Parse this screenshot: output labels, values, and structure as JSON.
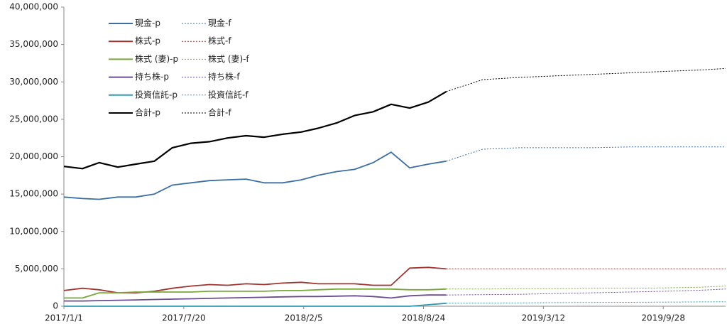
{
  "chart_data": {
    "type": "line",
    "xlim": [
      "2017/1/1",
      "2020/1/10"
    ],
    "xticks": [
      "2017/1/1",
      "2017/7/20",
      "2018/2/5",
      "2018/8/24",
      "2019/3/12",
      "2019/9/28"
    ],
    "ylim": [
      0,
      40000000
    ],
    "yticks": [
      0,
      {
        "value": 5000000,
        "label": "5,000,000"
      },
      {
        "value": 10000000,
        "label": "10,000,000"
      },
      {
        "value": 15000000,
        "label": "15,000,000"
      },
      {
        "value": 20000000,
        "label": "20,000,000"
      },
      {
        "value": 25000000,
        "label": "25,000,000"
      },
      {
        "value": 30000000,
        "label": "30,000,000"
      },
      {
        "value": 35000000,
        "label": "35,000,000"
      },
      {
        "value": 40000000,
        "label": "40,000,000"
      }
    ],
    "grid": false,
    "legend": "upper-left",
    "series": [
      {
        "name": "現金-p",
        "color": "#3a6ea5",
        "dashed": false,
        "x": [
          "2017/1/1",
          "2017/2/1",
          "2017/3/1",
          "2017/4/1",
          "2017/5/1",
          "2017/6/1",
          "2017/7/1",
          "2017/8/1",
          "2017/9/1",
          "2017/10/1",
          "2017/11/1",
          "2017/12/1",
          "2018/1/1",
          "2018/2/1",
          "2018/3/1",
          "2018/4/1",
          "2018/5/1",
          "2018/6/1",
          "2018/7/1",
          "2018/8/1",
          "2018/9/1",
          "2018/10/1"
        ],
        "values": [
          14600000,
          14400000,
          14300000,
          14600000,
          14600000,
          15000000,
          16200000,
          16500000,
          16800000,
          16900000,
          17000000,
          16500000,
          16500000,
          16900000,
          17500000,
          18000000,
          18300000,
          19200000,
          20600000,
          18500000,
          19000000,
          19400000
        ]
      },
      {
        "name": "現金-f",
        "color": "#3a6ea5",
        "dashed": true,
        "x": [
          "2018/10/1",
          "2018/12/1",
          "2019/2/1",
          "2019/4/1",
          "2019/6/1",
          "2019/8/1",
          "2019/10/1",
          "2019/12/1",
          "2020/1/10"
        ],
        "values": [
          19400000,
          21000000,
          21200000,
          21200000,
          21200000,
          21300000,
          21300000,
          21300000,
          21300000
        ]
      },
      {
        "name": "株式-p",
        "color": "#a03530",
        "dashed": false,
        "x": [
          "2017/1/1",
          "2017/2/1",
          "2017/3/1",
          "2017/4/1",
          "2017/5/1",
          "2017/6/1",
          "2017/7/1",
          "2017/8/1",
          "2017/9/1",
          "2017/10/1",
          "2017/11/1",
          "2017/12/1",
          "2018/1/1",
          "2018/2/1",
          "2018/3/1",
          "2018/4/1",
          "2018/5/1",
          "2018/6/1",
          "2018/7/1",
          "2018/8/1",
          "2018/9/1",
          "2018/10/1"
        ],
        "values": [
          2100000,
          2400000,
          2200000,
          1800000,
          1800000,
          2000000,
          2400000,
          2700000,
          2900000,
          2800000,
          3000000,
          2900000,
          3100000,
          3200000,
          3000000,
          3000000,
          3000000,
          2800000,
          2800000,
          5100000,
          5200000,
          5000000
        ]
      },
      {
        "name": "株式-f",
        "color": "#a03530",
        "dashed": true,
        "x": [
          "2018/10/1",
          "2018/12/1",
          "2019/2/1",
          "2019/4/1",
          "2019/6/1",
          "2019/8/1",
          "2019/10/1",
          "2019/12/1",
          "2020/1/10"
        ],
        "values": [
          5000000,
          5000000,
          5000000,
          5000000,
          5000000,
          5000000,
          5000000,
          5000000,
          5000000
        ]
      },
      {
        "name": "株式 (妻)-p",
        "color": "#79a83a",
        "dashed": false,
        "x": [
          "2017/1/1",
          "2017/2/1",
          "2017/3/1",
          "2017/4/1",
          "2017/5/1",
          "2017/6/1",
          "2017/7/1",
          "2017/8/1",
          "2017/9/1",
          "2017/10/1",
          "2017/11/1",
          "2017/12/1",
          "2018/1/1",
          "2018/2/1",
          "2018/3/1",
          "2018/4/1",
          "2018/5/1",
          "2018/6/1",
          "2018/7/1",
          "2018/8/1",
          "2018/9/1",
          "2018/10/1"
        ],
        "values": [
          1100000,
          1100000,
          1800000,
          1800000,
          1900000,
          1900000,
          1900000,
          1900000,
          2000000,
          2000000,
          2000000,
          2000000,
          2100000,
          2100000,
          2200000,
          2300000,
          2300000,
          2300000,
          2300000,
          2200000,
          2200000,
          2300000
        ]
      },
      {
        "name": "株式 (妻)-f",
        "color": "#79a83a",
        "dashed": true,
        "x": [
          "2018/10/1",
          "2018/12/1",
          "2019/2/1",
          "2019/4/1",
          "2019/6/1",
          "2019/8/1",
          "2019/10/1",
          "2019/12/1",
          "2020/1/10"
        ],
        "values": [
          2300000,
          2300000,
          2350000,
          2350000,
          2400000,
          2400000,
          2450000,
          2550000,
          2700000
        ]
      },
      {
        "name": "持ち株-p",
        "color": "#6b4b94",
        "dashed": false,
        "x": [
          "2017/1/1",
          "2017/2/1",
          "2017/3/1",
          "2017/4/1",
          "2017/5/1",
          "2017/6/1",
          "2017/7/1",
          "2017/8/1",
          "2017/9/1",
          "2017/10/1",
          "2017/11/1",
          "2017/12/1",
          "2018/1/1",
          "2018/2/1",
          "2018/3/1",
          "2018/4/1",
          "2018/5/1",
          "2018/6/1",
          "2018/7/1",
          "2018/8/1",
          "2018/9/1",
          "2018/10/1"
        ],
        "values": [
          700000,
          700000,
          750000,
          800000,
          850000,
          900000,
          950000,
          1000000,
          1050000,
          1100000,
          1150000,
          1200000,
          1250000,
          1300000,
          1300000,
          1350000,
          1400000,
          1300000,
          1100000,
          1400000,
          1500000,
          1500000
        ]
      },
      {
        "name": "持ち株-f",
        "color": "#6b4b94",
        "dashed": true,
        "x": [
          "2018/10/1",
          "2018/12/1",
          "2019/2/1",
          "2019/4/1",
          "2019/6/1",
          "2019/8/1",
          "2019/10/1",
          "2019/12/1",
          "2020/1/10"
        ],
        "values": [
          1500000,
          1550000,
          1600000,
          1700000,
          1800000,
          1900000,
          2000000,
          2150000,
          2300000
        ]
      },
      {
        "name": "投資信託-p",
        "color": "#2f9bb0",
        "dashed": false,
        "x": [
          "2017/1/1",
          "2017/2/1",
          "2017/3/1",
          "2017/4/1",
          "2017/5/1",
          "2017/6/1",
          "2017/7/1",
          "2017/8/1",
          "2017/9/1",
          "2017/10/1",
          "2017/11/1",
          "2017/12/1",
          "2018/1/1",
          "2018/2/1",
          "2018/3/1",
          "2018/4/1",
          "2018/5/1",
          "2018/6/1",
          "2018/7/1",
          "2018/8/1",
          "2018/9/1",
          "2018/10/1"
        ],
        "values": [
          0,
          0,
          0,
          0,
          0,
          0,
          0,
          0,
          0,
          0,
          0,
          0,
          0,
          0,
          0,
          0,
          0,
          0,
          0,
          0,
          200000,
          400000
        ]
      },
      {
        "name": "投資信託-f",
        "color": "#2f9bb0",
        "dashed": true,
        "x": [
          "2018/10/1",
          "2018/12/1",
          "2019/2/1",
          "2019/4/1",
          "2019/6/1",
          "2019/8/1",
          "2019/10/1",
          "2019/12/1",
          "2020/1/10"
        ],
        "values": [
          400000,
          420000,
          450000,
          480000,
          500000,
          520000,
          550000,
          580000,
          600000
        ]
      },
      {
        "name": "合計-p",
        "color": "#000000",
        "dashed": false,
        "x": [
          "2017/1/1",
          "2017/2/1",
          "2017/3/1",
          "2017/4/1",
          "2017/5/1",
          "2017/6/1",
          "2017/7/1",
          "2017/8/1",
          "2017/9/1",
          "2017/10/1",
          "2017/11/1",
          "2017/12/1",
          "2018/1/1",
          "2018/2/1",
          "2018/3/1",
          "2018/4/1",
          "2018/5/1",
          "2018/6/1",
          "2018/7/1",
          "2018/8/1",
          "2018/9/1",
          "2018/10/1"
        ],
        "values": [
          18700000,
          18400000,
          19200000,
          18600000,
          19000000,
          19400000,
          21200000,
          21800000,
          22000000,
          22500000,
          22800000,
          22600000,
          23000000,
          23300000,
          23800000,
          24500000,
          25500000,
          26000000,
          27000000,
          26500000,
          27300000,
          28700000
        ]
      },
      {
        "name": "合計-f",
        "color": "#000000",
        "dashed": true,
        "x": [
          "2018/10/1",
          "2018/12/1",
          "2019/2/1",
          "2019/4/1",
          "2019/6/1",
          "2019/8/1",
          "2019/10/1",
          "2019/12/1",
          "2020/1/10"
        ],
        "values": [
          28700000,
          30300000,
          30600000,
          30800000,
          31000000,
          31200000,
          31400000,
          31600000,
          31800000
        ]
      }
    ]
  }
}
